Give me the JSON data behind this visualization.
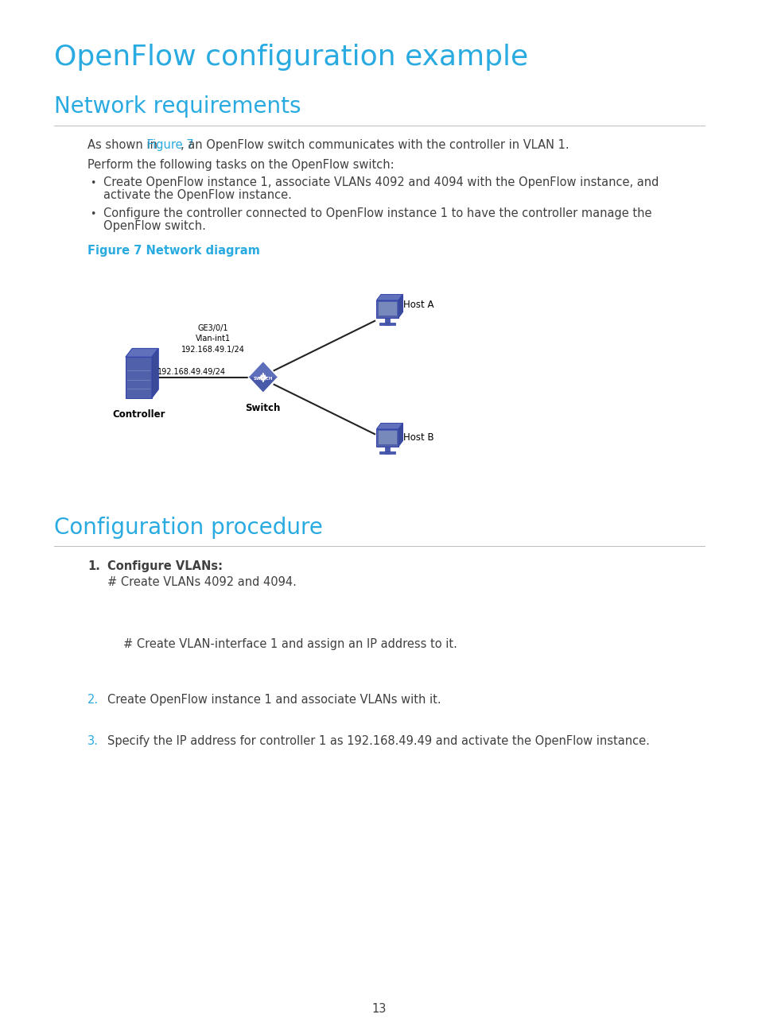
{
  "title_main": "OpenFlow configuration example",
  "title_section1": "Network requirements",
  "title_section2": "Configuration procedure",
  "title_color": "#29ABE2",
  "body_color": "#404040",
  "link_color": "#29ABE2",
  "figure_caption": "Figure 7 Network diagram",
  "bg_color": "#FFFFFF",
  "page_number": "13",
  "para1_before": "As shown in ",
  "para1_link": "Figure 7",
  "para1_after": ", an OpenFlow switch communicates with the controller in VLAN 1.",
  "para2": "Perform the following tasks on the OpenFlow switch:",
  "bullet1_line1": "Create OpenFlow instance 1, associate VLANs 4092 and 4094 with the OpenFlow instance, and",
  "bullet1_line2": "activate the OpenFlow instance.",
  "bullet2_line1": "Configure the controller connected to OpenFlow instance 1 to have the controller manage the",
  "bullet2_line2": "OpenFlow switch.",
  "vlan_interface_text": "# Create VLAN-interface 1 and assign an IP address to it.",
  "label_ge": "GE3/0/1",
  "label_vlan": "Vlan-int1",
  "label_ip1": "192.168.49.1/24",
  "label_ip2": "192.168.49.49/24",
  "label_controller": "Controller",
  "label_switch": "Switch",
  "label_host_a": "Host A",
  "label_host_b": "Host B"
}
